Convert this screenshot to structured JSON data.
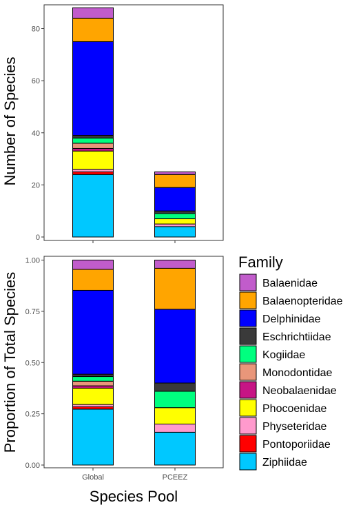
{
  "colors": {
    "Balaenidae": "#C15CCB",
    "Balaenopteridae": "#FFA500",
    "Delphinidae": "#0000FF",
    "Eschrichtiidae": "#3A3A3A",
    "Kogiidae": "#00FF7F",
    "Monodontidae": "#E9967A",
    "Neobalaenidae": "#C71585",
    "Phocoenidae": "#FFFF00",
    "Physeteridae": "#FF9ACD",
    "Pontoporiidae": "#FF0000",
    "Ziphiidae": "#00C8FF"
  },
  "chart_data": [
    {
      "type": "bar",
      "stacked": true,
      "categories": [
        "Global",
        "PCEEZ"
      ],
      "xlabel": "",
      "ylabel": "Number of Species",
      "ylim": [
        0,
        88
      ],
      "yticks": [
        0,
        20,
        40,
        60,
        80
      ],
      "ytick_labels": [
        "0",
        "20",
        "40",
        "60",
        "80"
      ],
      "grid": false,
      "series": [
        {
          "name": "Ziphiidae",
          "values": [
            24,
            4
          ]
        },
        {
          "name": "Pontoporiidae",
          "values": [
            1,
            0
          ]
        },
        {
          "name": "Physeteridae",
          "values": [
            1,
            1
          ]
        },
        {
          "name": "Phocoenidae",
          "values": [
            7,
            2
          ]
        },
        {
          "name": "Neobalaenidae",
          "values": [
            1,
            0
          ]
        },
        {
          "name": "Monodontidae",
          "values": [
            2,
            0
          ]
        },
        {
          "name": "Kogiidae",
          "values": [
            2,
            2
          ]
        },
        {
          "name": "Eschrichtiidae",
          "values": [
            1,
            1
          ]
        },
        {
          "name": "Delphinidae",
          "values": [
            36,
            9
          ]
        },
        {
          "name": "Balaenopteridae",
          "values": [
            9,
            5
          ]
        },
        {
          "name": "Balaenidae",
          "values": [
            4,
            1
          ]
        }
      ]
    },
    {
      "type": "bar",
      "stacked": true,
      "categories": [
        "Global",
        "PCEEZ"
      ],
      "category_labels": [
        "Global",
        "PCEEZ"
      ],
      "xlabel": "Species Pool",
      "ylabel": "Proportion of Total Species",
      "ylim": [
        0,
        1
      ],
      "yticks": [
        0,
        0.25,
        0.5,
        0.75,
        1
      ],
      "ytick_labels": [
        "0.00",
        "0.25",
        "0.50",
        "0.75",
        "1.00"
      ],
      "grid": false,
      "series": [
        {
          "name": "Ziphiidae",
          "values": [
            0.2727,
            0.16
          ]
        },
        {
          "name": "Pontoporiidae",
          "values": [
            0.0114,
            0
          ]
        },
        {
          "name": "Physeteridae",
          "values": [
            0.0114,
            0.04
          ]
        },
        {
          "name": "Phocoenidae",
          "values": [
            0.0795,
            0.08
          ]
        },
        {
          "name": "Neobalaenidae",
          "values": [
            0.0114,
            0
          ]
        },
        {
          "name": "Monodontidae",
          "values": [
            0.0227,
            0
          ]
        },
        {
          "name": "Kogiidae",
          "values": [
            0.0227,
            0.08
          ]
        },
        {
          "name": "Eschrichtiidae",
          "values": [
            0.0114,
            0.04
          ]
        },
        {
          "name": "Delphinidae",
          "values": [
            0.4091,
            0.36
          ]
        },
        {
          "name": "Balaenopteridae",
          "values": [
            0.1023,
            0.2
          ]
        },
        {
          "name": "Balaenidae",
          "values": [
            0.0455,
            0.04
          ]
        }
      ]
    }
  ],
  "legend": {
    "title": "Family",
    "placement": "right",
    "items": [
      "Balaenidae",
      "Balaenopteridae",
      "Delphinidae",
      "Eschrichtiidae",
      "Kogiidae",
      "Monodontidae",
      "Neobalaenidae",
      "Phocoenidae",
      "Physeteridae",
      "Pontoporiidae",
      "Ziphiidae"
    ]
  }
}
